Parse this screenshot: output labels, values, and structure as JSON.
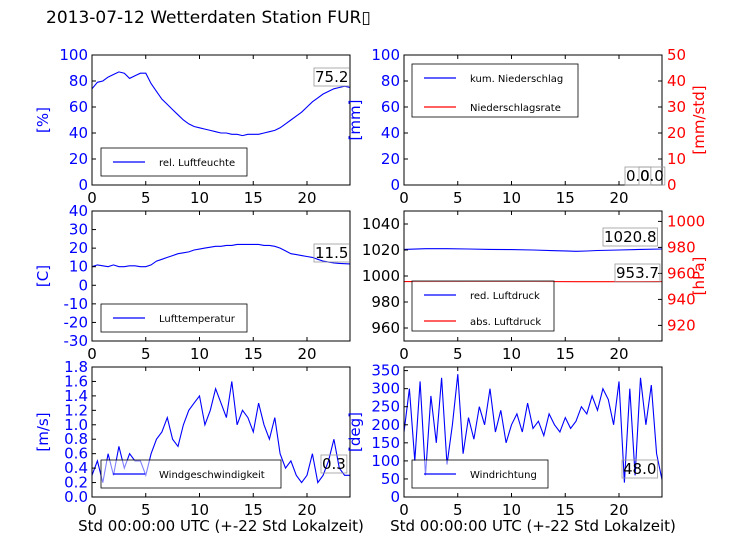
{
  "title": "2013-07-12 Wetterdaten Station FUR▯",
  "xlabel": "Std 00:00:00 UTC (+-22 Std Lokalzeit)",
  "colors": {
    "blue": "#0000ff",
    "red": "#ff0000",
    "light_blue": "#8080ff"
  },
  "chart_data": [
    {
      "id": "humidity",
      "type": "line",
      "xlim": [
        0,
        24
      ],
      "xticks": [
        0,
        5,
        10,
        15,
        20
      ],
      "ylabel": "[%]",
      "ylim": [
        0,
        100
      ],
      "yticks": [
        0,
        20,
        40,
        60,
        80,
        100
      ],
      "legend_position": "lower-left",
      "series": [
        {
          "name": "rel. Luftfeuchte",
          "color": "#0000ff",
          "x": [
            0,
            0.5,
            1,
            1.5,
            2,
            2.5,
            3,
            3.5,
            4,
            4.5,
            5,
            5.5,
            6,
            6.5,
            7,
            7.5,
            8,
            8.5,
            9,
            9.5,
            10,
            10.5,
            11,
            11.5,
            12,
            12.5,
            13,
            13.5,
            14,
            14.5,
            15,
            15.5,
            16,
            16.5,
            17,
            17.5,
            18,
            18.5,
            19,
            19.5,
            20,
            20.5,
            21,
            21.5,
            22,
            22.5,
            23,
            23.5,
            24
          ],
          "y": [
            74,
            79,
            80,
            83,
            85,
            87,
            86,
            82,
            84,
            86,
            86,
            78,
            72,
            66,
            62,
            58,
            54,
            50,
            47,
            45,
            44,
            43,
            42,
            41,
            40,
            40,
            39,
            39,
            38,
            39,
            39,
            39,
            40,
            41,
            42,
            44,
            47,
            50,
            53,
            56,
            60,
            64,
            67,
            70,
            72,
            74,
            75,
            76,
            75
          ]
        }
      ],
      "current_value": "75.2"
    },
    {
      "id": "precipitation",
      "type": "line",
      "xlim": [
        0,
        24
      ],
      "xticks": [
        0,
        5,
        10,
        15,
        20
      ],
      "ylabel": "[mm]",
      "ylim": [
        0,
        100
      ],
      "yticks": [
        0,
        20,
        40,
        60,
        80,
        100
      ],
      "y2label": "[mm/std]",
      "y2lim": [
        0,
        50
      ],
      "y2ticks": [
        0,
        10,
        20,
        30,
        40,
        50
      ],
      "legend_position": "upper-left",
      "series": [
        {
          "name": "kum. Niederschlag",
          "color": "#0000ff",
          "axis": "left",
          "x": [
            0,
            24
          ],
          "y": [
            0,
            0
          ]
        },
        {
          "name": "Niederschlagsrate",
          "color": "#ff0000",
          "axis": "right",
          "x": [
            0,
            24
          ],
          "y": [
            0,
            0
          ]
        }
      ],
      "current_value": "0.0",
      "current_value_2": "0.0"
    },
    {
      "id": "temperature",
      "type": "line",
      "xlim": [
        0,
        24
      ],
      "xticks": [
        0,
        5,
        10,
        15,
        20
      ],
      "ylabel": "[C]",
      "ylim": [
        -30,
        40
      ],
      "yticks": [
        -30,
        -20,
        -10,
        0,
        10,
        20,
        30,
        40
      ],
      "legend_position": "lower-left",
      "series": [
        {
          "name": "Lufttemperatur",
          "color": "#0000ff",
          "x": [
            0,
            0.5,
            1,
            1.5,
            2,
            2.5,
            3,
            3.5,
            4,
            4.5,
            5,
            5.5,
            6,
            6.5,
            7,
            7.5,
            8,
            8.5,
            9,
            9.5,
            10,
            10.5,
            11,
            11.5,
            12,
            12.5,
            13,
            13.5,
            14,
            14.5,
            15,
            15.5,
            16,
            16.5,
            17,
            17.5,
            18,
            18.5,
            19,
            19.5,
            20,
            20.5,
            21,
            21.5,
            22,
            22.5,
            23,
            23.5,
            24
          ],
          "y": [
            10,
            11,
            10.5,
            10,
            11,
            10,
            10,
            10.5,
            10.5,
            10,
            10,
            11,
            13,
            14,
            15,
            16,
            17,
            17.5,
            18,
            19,
            19.5,
            20,
            20.5,
            21,
            21,
            21.5,
            21.5,
            22,
            22,
            22,
            22,
            22,
            21.5,
            21.5,
            21,
            20,
            18.5,
            17,
            16.5,
            16,
            15.5,
            15,
            14,
            13,
            12.5,
            12,
            11.8,
            11.6,
            11.5
          ]
        }
      ],
      "current_value": "11.5"
    },
    {
      "id": "pressure",
      "type": "line",
      "xlim": [
        0,
        24
      ],
      "xticks": [
        0,
        5,
        10,
        15,
        20
      ],
      "ylim": [
        950,
        1050
      ],
      "yticks": [
        960,
        980,
        1000,
        1020,
        1040
      ],
      "y2label": "[hPa]",
      "y2lim": [
        908,
        1008
      ],
      "y2ticks": [
        920,
        940,
        960,
        980,
        1000
      ],
      "legend_position": "lower-left",
      "series": [
        {
          "name": "red. Luftdruck",
          "color": "#0000ff",
          "axis": "left",
          "x": [
            0,
            2,
            4,
            6,
            8,
            10,
            12,
            14,
            15,
            16,
            17,
            18,
            20,
            22,
            24
          ],
          "y": [
            1020.5,
            1021,
            1021,
            1020.8,
            1020.5,
            1020.3,
            1020,
            1019.5,
            1019.3,
            1019,
            1019.2,
            1019.6,
            1020,
            1020.5,
            1020.8
          ]
        },
        {
          "name": "abs. Luftdruck",
          "color": "#ff0000",
          "axis": "right",
          "x": [
            0,
            6,
            12,
            16,
            20,
            24
          ],
          "y": [
            953.7,
            953.8,
            953.8,
            953.6,
            953.6,
            953.7
          ]
        }
      ],
      "current_value": "1020.8",
      "current_value_2": "953.7"
    },
    {
      "id": "wind_speed",
      "type": "line",
      "xlim": [
        0,
        24
      ],
      "xticks": [
        0,
        5,
        10,
        15,
        20
      ],
      "ylabel": "[m/s]",
      "ylim": [
        0,
        1.8
      ],
      "yticks": [
        0.0,
        0.2,
        0.4,
        0.6,
        0.8,
        1.0,
        1.2,
        1.4,
        1.6,
        1.8
      ],
      "legend_position": "lower-left",
      "series": [
        {
          "name": "Windgeschwindigkeit",
          "color": "#0000ff",
          "x": [
            0,
            0.5,
            1,
            1.5,
            2,
            2.5,
            3,
            3.5,
            4,
            4.5,
            5,
            5.5,
            6,
            6.5,
            7,
            7.5,
            8,
            8.5,
            9,
            9.5,
            10,
            10.5,
            11,
            11.5,
            12,
            12.5,
            13,
            13.5,
            14,
            14.5,
            15,
            15.5,
            16,
            16.5,
            17,
            17.5,
            18,
            18.5,
            19,
            19.5,
            20,
            20.5,
            21,
            21.5,
            22,
            22.5,
            23,
            23.5,
            24
          ],
          "y": [
            0.3,
            0.5,
            0.2,
            0.6,
            0.3,
            0.7,
            0.4,
            0.6,
            0.5,
            0.5,
            0.3,
            0.6,
            0.8,
            0.9,
            1.1,
            0.8,
            0.7,
            1.0,
            1.2,
            1.3,
            1.4,
            1.0,
            1.2,
            1.5,
            1.3,
            1.1,
            1.6,
            1.0,
            1.2,
            1.1,
            0.9,
            1.3,
            1.0,
            0.8,
            1.1,
            0.6,
            0.4,
            0.5,
            0.3,
            0.2,
            0.3,
            0.6,
            0.2,
            0.3,
            0.5,
            0.8,
            0.4,
            0.3,
            0.3
          ]
        }
      ],
      "current_value": "0.3"
    },
    {
      "id": "wind_direction",
      "type": "line",
      "xlim": [
        0,
        24
      ],
      "xticks": [
        0,
        5,
        10,
        15,
        20
      ],
      "ylabel": "[deg]",
      "ylim": [
        0,
        360
      ],
      "yticks": [
        0,
        50,
        100,
        150,
        200,
        250,
        300,
        350
      ],
      "legend_position": "lower-left",
      "series": [
        {
          "name": "Windrichtung",
          "color": "#0000ff",
          "x": [
            0,
            0.5,
            1,
            1.5,
            2,
            2.5,
            3,
            3.5,
            4,
            4.5,
            5,
            5.5,
            6,
            6.5,
            7,
            7.5,
            8,
            8.5,
            9,
            9.5,
            10,
            10.5,
            11,
            11.5,
            12,
            12.5,
            13,
            13.5,
            14,
            14.5,
            15,
            15.5,
            16,
            16.5,
            17,
            17.5,
            18,
            18.5,
            19,
            19.5,
            20,
            20.5,
            21,
            21.5,
            22,
            22.5,
            23,
            23.5,
            24
          ],
          "y": [
            180,
            300,
            100,
            320,
            60,
            280,
            150,
            330,
            90,
            200,
            340,
            120,
            220,
            160,
            250,
            200,
            300,
            180,
            240,
            150,
            200,
            230,
            180,
            260,
            190,
            210,
            170,
            230,
            200,
            180,
            220,
            190,
            210,
            250,
            230,
            280,
            240,
            300,
            270,
            200,
            320,
            40,
            300,
            60,
            330,
            200,
            310,
            120,
            48
          ]
        }
      ],
      "current_value": "48.0"
    }
  ]
}
